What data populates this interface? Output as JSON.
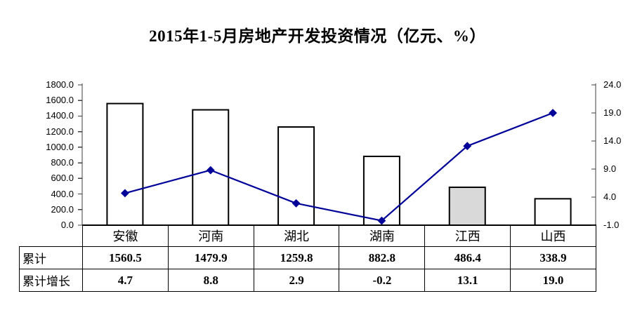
{
  "title": "2015年1-5月房地产开发投资情况（亿元、%）",
  "chart_data": {
    "type": "combo",
    "title": "2015年1-5月房地产开发投资情况（亿元、%）",
    "categories": [
      "安徽",
      "河南",
      "湖北",
      "湖南",
      "江西",
      "山西"
    ],
    "series": [
      {
        "name": "累计",
        "type": "bar",
        "axis": "left",
        "values": [
          1560.5,
          1479.9,
          1259.8,
          882.8,
          486.4,
          338.9
        ],
        "bar_fills": [
          "#FFFFFF",
          "#FFFFFF",
          "#FFFFFF",
          "#FFFFFF",
          "#D9D9D9",
          "#FFFFFF"
        ],
        "bar_border": "#000000"
      },
      {
        "name": "累计增长",
        "type": "line",
        "axis": "right",
        "values": [
          4.7,
          8.8,
          2.9,
          -0.2,
          13.1,
          19.0
        ],
        "color": "#000099",
        "marker": "diamond"
      }
    ],
    "left_axis": {
      "min": 0,
      "max": 1800,
      "step": 200,
      "tick_labels": [
        "1800.0",
        "1600.0",
        "1400.0",
        "1200.0",
        "1000.0",
        "800.0",
        "600.0",
        "400.0",
        "200.0",
        "0.0"
      ]
    },
    "right_axis": {
      "min": -1,
      "max": 24,
      "step": 5,
      "tick_labels": [
        "24.0",
        "19.0",
        "14.0",
        "9.0",
        "4.0",
        "-1.0"
      ]
    },
    "grid": false,
    "legend": "none",
    "data_table": {
      "corner": "",
      "row_headers": [
        "累计",
        "累计增长"
      ]
    }
  }
}
